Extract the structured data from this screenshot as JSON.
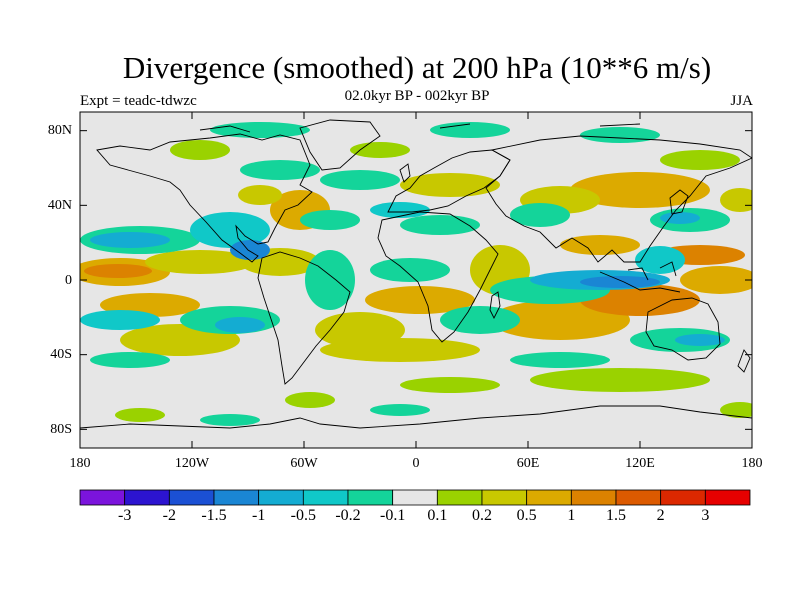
{
  "title": "Divergence (smoothed) at 200 hPa (10**6 m/s)",
  "subtitle": "02.0kyr BP - 002kyr BP",
  "experiment": "Expt = teadc-tdwzc",
  "season": "JJA",
  "map": {
    "projection": "cylindrical equidistant",
    "lon_range": [
      -180,
      180
    ],
    "lat_range": [
      -90,
      90
    ],
    "lat_labels": [
      "80N",
      "40N",
      "0",
      "40S",
      "80S"
    ],
    "lon_labels": [
      "180",
      "120W",
      "60W",
      "0",
      "60E",
      "120E",
      "180"
    ]
  },
  "colorbar": {
    "labels": [
      "-3",
      "-2",
      "-1.5",
      "-1",
      "-0.5",
      "-0.2",
      "-0.1",
      "0.1",
      "0.2",
      "0.5",
      "1",
      "1.5",
      "2",
      "3"
    ],
    "colors": [
      "#7b14dc",
      "#2c14d0",
      "#1b50d4",
      "#1a86d4",
      "#14acd2",
      "#10c8c8",
      "#14d49a",
      "#e6e6e6",
      "#9ad200",
      "#c8c800",
      "#dcaa00",
      "#dc8200",
      "#dc5a00",
      "#dc2800",
      "#e60000"
    ]
  },
  "colors": {
    "neutral": "#e6e6e6",
    "coast": "#000000"
  }
}
